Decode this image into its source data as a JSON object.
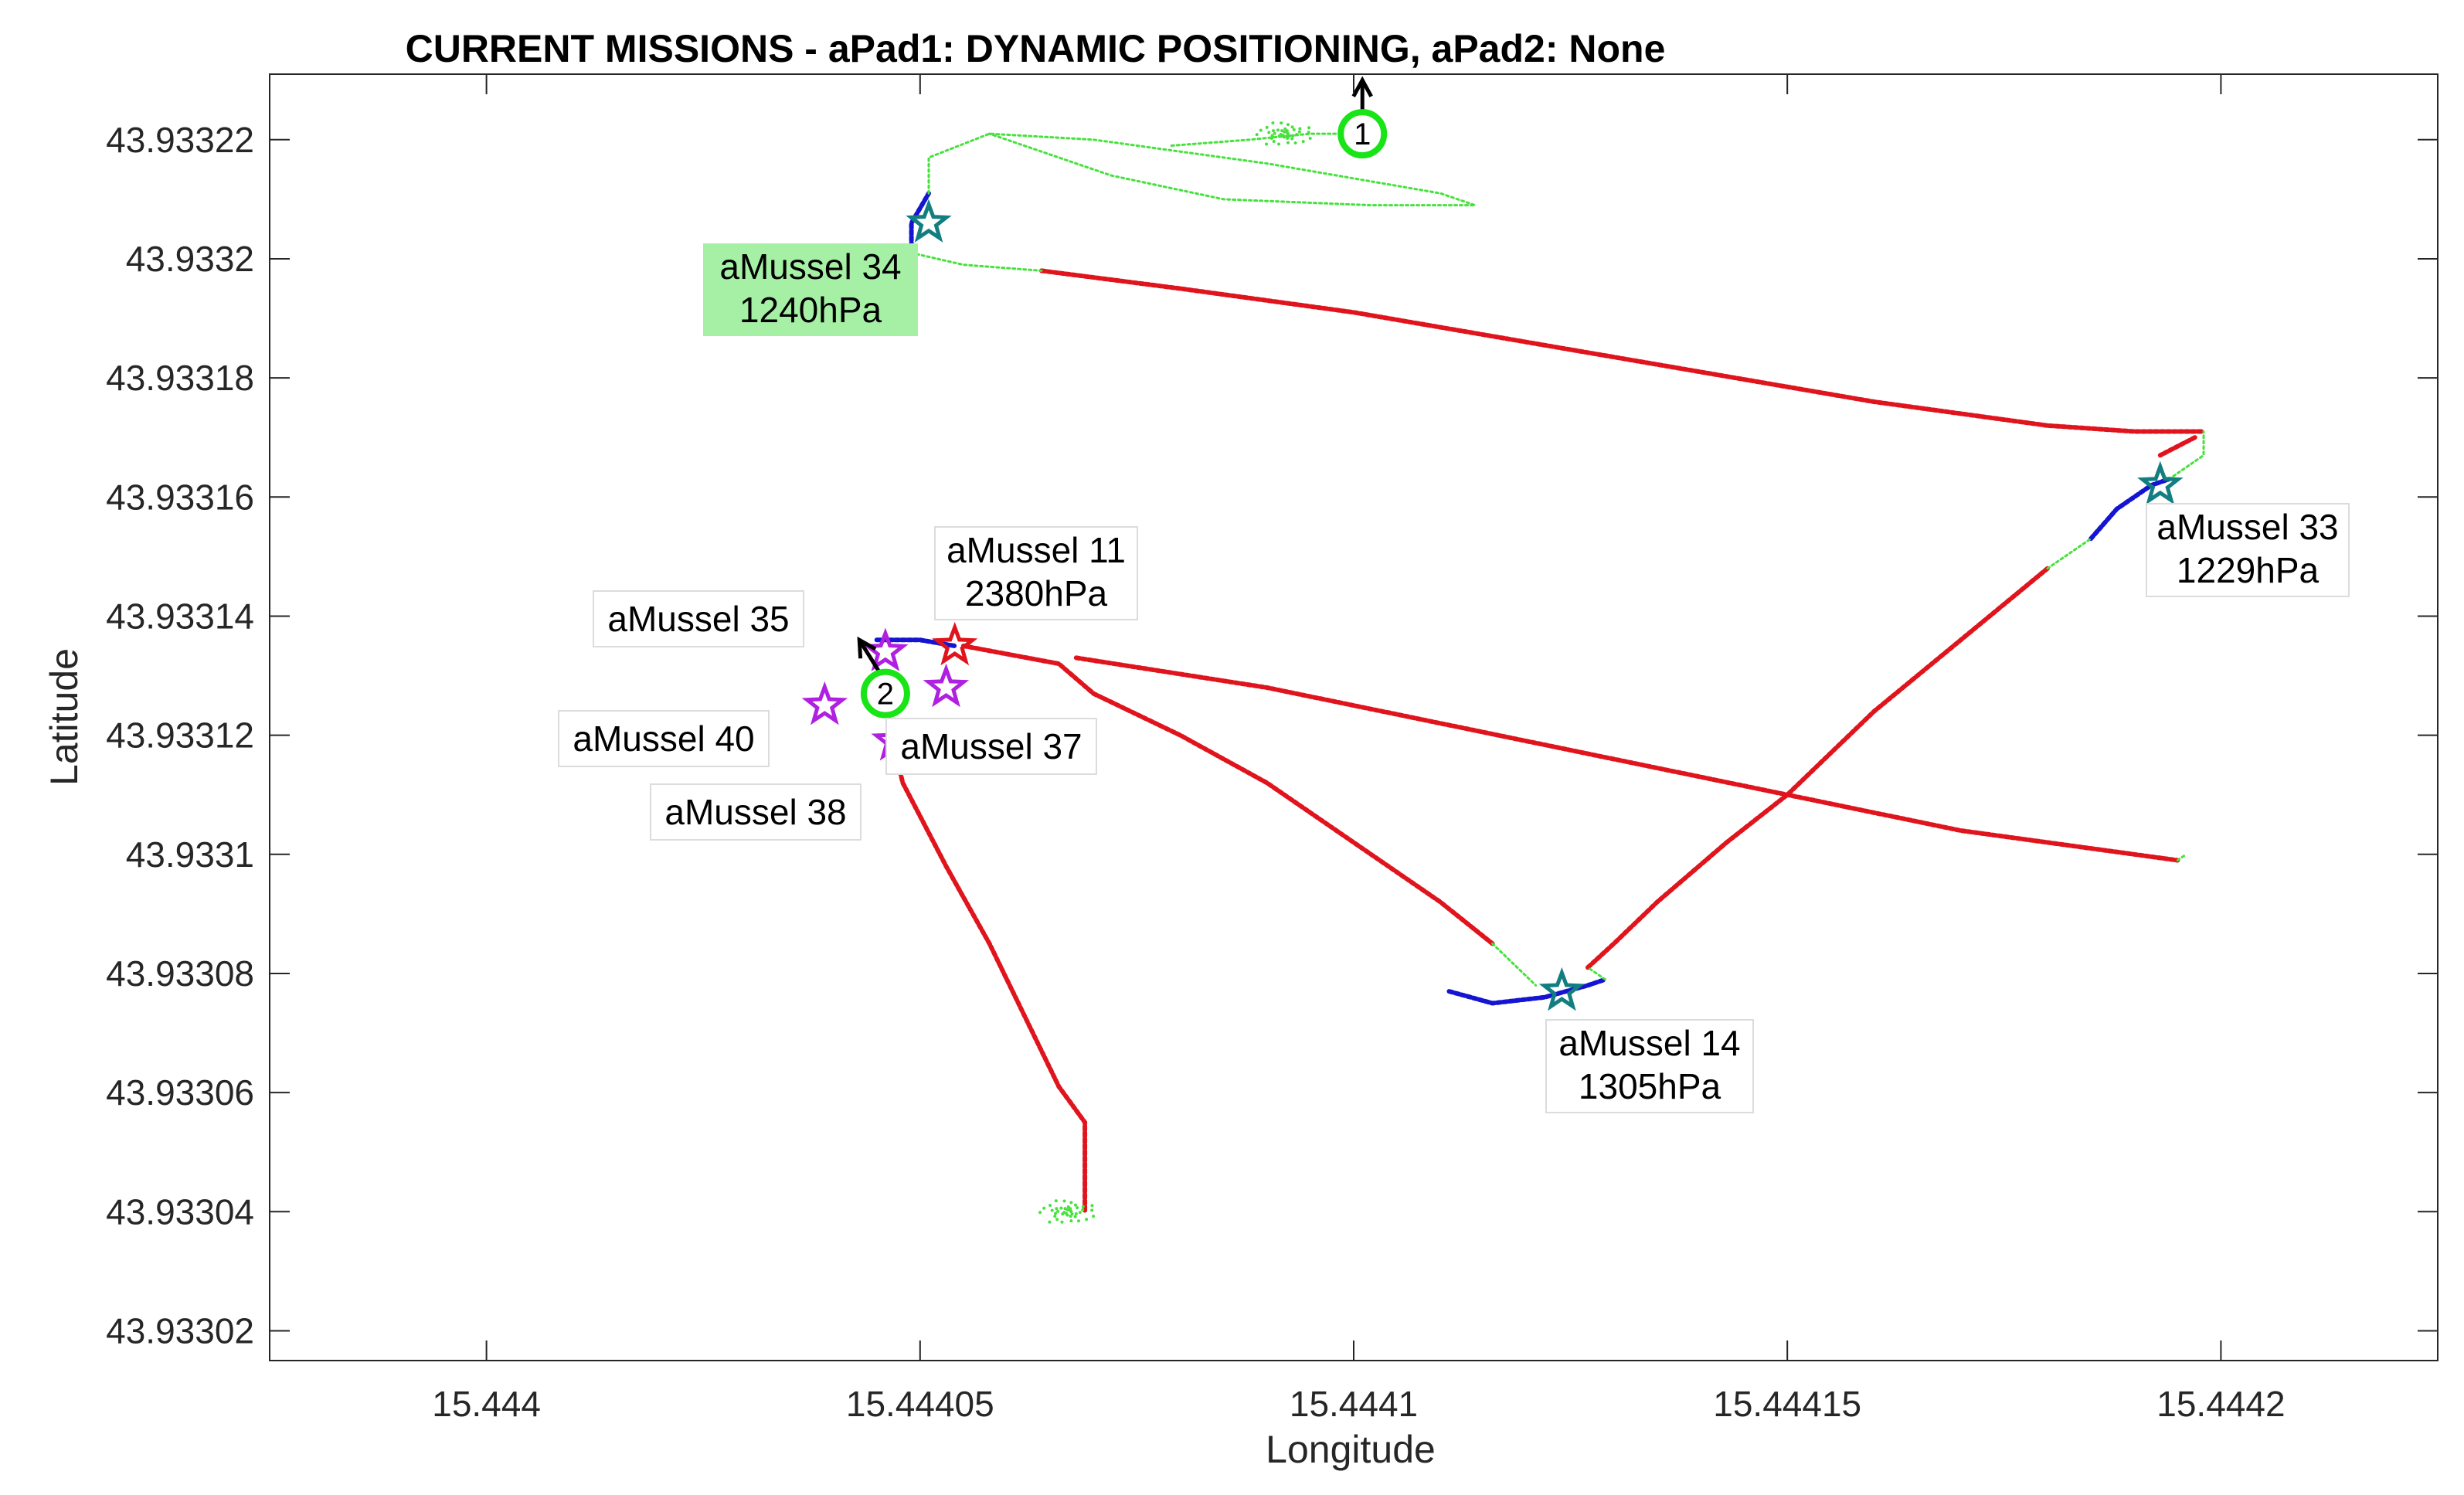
{
  "chart_data": {
    "type": "scatter",
    "title": "CURRENT MISSIONS - aPad1: DYNAMIC POSITIONING,  aPad2: None",
    "xlabel": "Longitude",
    "ylabel": "Latitude",
    "xlim": [
      15.443975,
      15.444225
    ],
    "ylim": [
      43.933015,
      43.933231
    ],
    "x_ticks": [
      15.444,
      15.44405,
      15.4441,
      15.44415,
      15.4442
    ],
    "x_tick_labels": [
      "15.444",
      "15.44405",
      "15.4441",
      "15.44415",
      "15.4442"
    ],
    "y_ticks": [
      43.93302,
      43.93304,
      43.93306,
      43.93308,
      43.9331,
      43.93312,
      43.93314,
      43.93316,
      43.93318,
      43.9332,
      43.93322
    ],
    "y_tick_labels": [
      "43.93302",
      "43.93304",
      "43.93306",
      "43.93308",
      "43.9331",
      "43.93312",
      "43.93314",
      "43.93316",
      "43.93318",
      "43.9332",
      "43.93322"
    ],
    "grid": false,
    "colors": {
      "red": "#e0141c",
      "blue": "#1414d2",
      "green": "#46e23c",
      "teal": "#127e80",
      "magenta": "#b020e0",
      "pad": "#18e418",
      "label_bg": "#a6f0a6"
    },
    "series": [
      {
        "color": "#e0141c",
        "points": [
          [
            15.444064,
            43.933198
          ],
          [
            15.44408,
            43.933195
          ],
          [
            15.4441,
            43.933191
          ],
          [
            15.44412,
            43.933186
          ],
          [
            15.44414,
            43.933181
          ],
          [
            15.44416,
            43.933176
          ],
          [
            15.44418,
            43.933172
          ],
          [
            15.44419,
            43.933171
          ],
          [
            15.444198,
            43.933171
          ]
        ]
      },
      {
        "color": "#e0141c",
        "points": [
          [
            15.444197,
            43.93317
          ],
          [
            15.444193,
            43.933167
          ]
        ]
      },
      {
        "color": "#e0141c",
        "points": [
          [
            15.444068,
            43.933133
          ],
          [
            15.44409,
            43.933128
          ],
          [
            15.44411,
            43.933122
          ],
          [
            15.44413,
            43.933116
          ],
          [
            15.44415,
            43.93311
          ],
          [
            15.44417,
            43.933104
          ],
          [
            15.44419,
            43.9331
          ],
          [
            15.444195,
            43.933099
          ]
        ]
      },
      {
        "color": "#e0141c",
        "points": [
          [
            15.444055,
            43.933135
          ],
          [
            15.444066,
            43.933132
          ],
          [
            15.44407,
            43.933127
          ],
          [
            15.44408,
            43.93312
          ],
          [
            15.44409,
            43.933112
          ],
          [
            15.4441,
            43.933102
          ],
          [
            15.44411,
            43.933092
          ],
          [
            15.444116,
            43.933085
          ]
        ]
      },
      {
        "color": "#e0141c",
        "points": [
          [
            15.444127,
            43.933081
          ],
          [
            15.44413,
            43.933085
          ],
          [
            15.444135,
            43.933092
          ],
          [
            15.444143,
            43.933102
          ],
          [
            15.44415,
            43.93311
          ],
          [
            15.44416,
            43.933124
          ],
          [
            15.44417,
            43.933136
          ],
          [
            15.44418,
            43.933148
          ]
        ]
      },
      {
        "color": "#e0141c",
        "points": [
          [
            15.444047,
            43.933118
          ],
          [
            15.444048,
            43.933112
          ],
          [
            15.444053,
            43.933098
          ],
          [
            15.444058,
            43.933085
          ],
          [
            15.444062,
            43.933073
          ],
          [
            15.444066,
            43.933061
          ],
          [
            15.444069,
            43.933055
          ],
          [
            15.444069,
            43.93304
          ]
        ]
      },
      {
        "color": "#1414d2",
        "points": [
          [
            15.444049,
            43.933201
          ],
          [
            15.444049,
            43.933206
          ],
          [
            15.444051,
            43.933211
          ]
        ]
      },
      {
        "color": "#1414d2",
        "points": [
          [
            15.444045,
            43.933136
          ],
          [
            15.44405,
            43.933136
          ],
          [
            15.444054,
            43.933135
          ]
        ]
      },
      {
        "color": "#1414d2",
        "points": [
          [
            15.444111,
            43.933077
          ],
          [
            15.444116,
            43.933075
          ],
          [
            15.444122,
            43.933076
          ],
          [
            15.444127,
            43.933078
          ],
          [
            15.444129,
            43.933079
          ]
        ]
      },
      {
        "color": "#1414d2",
        "points": [
          [
            15.444185,
            43.933153
          ],
          [
            15.444188,
            43.933158
          ],
          [
            15.444192,
            43.933162
          ],
          [
            15.444194,
            43.933163
          ]
        ]
      },
      {
        "color": "#46e23c",
        "points": [
          [
            15.444049,
            43.933201
          ],
          [
            15.444055,
            43.933199
          ],
          [
            15.444064,
            43.933198
          ]
        ]
      },
      {
        "color": "#46e23c",
        "points": [
          [
            15.444051,
            43.933211
          ],
          [
            15.444051,
            43.933217
          ],
          [
            15.444058,
            43.933221
          ],
          [
            15.44407,
            43.93322
          ],
          [
            15.44409,
            43.933216
          ],
          [
            15.44411,
            43.933211
          ],
          [
            15.444114,
            43.933209
          ],
          [
            15.444102,
            43.933209
          ],
          [
            15.444085,
            43.93321
          ],
          [
            15.444072,
            43.933214
          ],
          [
            15.444058,
            43.933221
          ]
        ]
      },
      {
        "color": "#46e23c",
        "points": [
          [
            15.444079,
            43.933219
          ],
          [
            15.444088,
            43.93322
          ],
          [
            15.444095,
            43.933221
          ],
          [
            15.444101,
            43.933221
          ]
        ]
      },
      {
        "color": "#46e23c",
        "points": [
          [
            15.444116,
            43.933085
          ],
          [
            15.444121,
            43.933078
          ]
        ]
      },
      {
        "color": "#46e23c",
        "points": [
          [
            15.444129,
            43.933079
          ],
          [
            15.444127,
            43.933081
          ]
        ]
      },
      {
        "color": "#46e23c",
        "points": [
          [
            15.44418,
            43.933148
          ],
          [
            15.444185,
            43.933153
          ]
        ]
      },
      {
        "color": "#46e23c",
        "points": [
          [
            15.444194,
            43.933163
          ],
          [
            15.444198,
            43.933167
          ],
          [
            15.444198,
            43.933171
          ]
        ]
      },
      {
        "color": "#46e23c",
        "points": [
          [
            15.444195,
            43.933099
          ],
          [
            15.444196,
            43.9331
          ]
        ]
      }
    ],
    "clusters": [
      {
        "color": "#46e23c",
        "x": 15.444067,
        "y": 43.93304
      },
      {
        "color": "#46e23c",
        "x": 15.444092,
        "y": 43.933221
      }
    ],
    "arrows": [
      {
        "from": [
          15.444101,
          43.933221
        ],
        "to": [
          15.444101,
          43.93323
        ]
      },
      {
        "from": [
          15.444046,
          43.933129
        ],
        "to": [
          15.444043,
          43.933136
        ]
      }
    ],
    "pads": [
      {
        "x": 15.444101,
        "y": 43.933221,
        "label": "1"
      },
      {
        "x": 15.444046,
        "y": 43.933127,
        "label": "2"
      }
    ],
    "markers": [
      {
        "name": "aMussel 34",
        "color": "#127e80",
        "x": 15.444051,
        "y": 43.933206
      },
      {
        "name": "aMussel 33",
        "color": "#127e80",
        "x": 15.444193,
        "y": 43.933162
      },
      {
        "name": "aMussel 14",
        "color": "#127e80",
        "x": 15.444124,
        "y": 43.933077
      },
      {
        "name": "aMussel 11",
        "color": "#e0141c",
        "x": 15.444054,
        "y": 43.933135
      },
      {
        "name": "aMussel 35",
        "color": "#b020e0",
        "x": 15.444046,
        "y": 43.933134
      },
      {
        "name": "aMussel 40",
        "color": "#b020e0",
        "x": 15.444039,
        "y": 43.933125
      },
      {
        "name": "aMussel 37",
        "color": "#b020e0",
        "x": 15.444053,
        "y": 43.933128
      },
      {
        "name": "aMussel 38",
        "color": "#b020e0",
        "x": 15.444047,
        "y": 43.933119
      }
    ],
    "annotations": [
      {
        "lines": [
          "aMussel 34",
          "1240hPa"
        ],
        "highlight": true
      },
      {
        "lines": [
          "aMussel 33",
          "1229hPa"
        ],
        "highlight": false
      },
      {
        "lines": [
          "aMussel 14",
          "1305hPa"
        ],
        "highlight": false
      },
      {
        "lines": [
          "aMussel 11",
          "2380hPa"
        ],
        "highlight": false
      },
      {
        "lines": [
          "aMussel 35"
        ],
        "highlight": false
      },
      {
        "lines": [
          "aMussel 40"
        ],
        "highlight": false
      },
      {
        "lines": [
          "aMussel 37"
        ],
        "highlight": false
      },
      {
        "lines": [
          "aMussel 38"
        ],
        "highlight": false
      }
    ]
  }
}
